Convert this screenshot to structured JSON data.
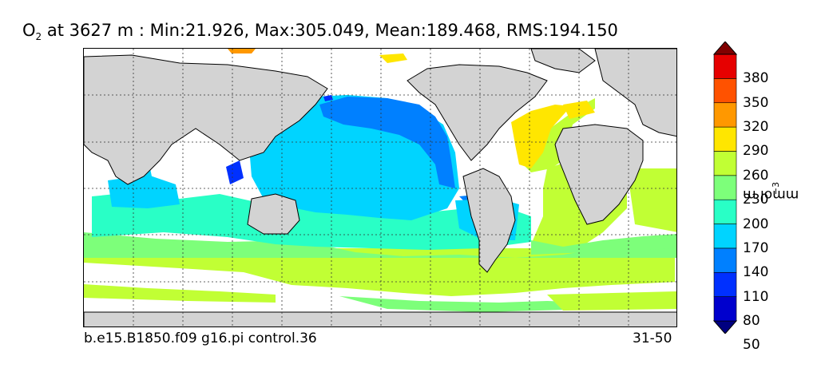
{
  "title": {
    "variable_base": "O",
    "variable_sub": "2",
    "rest": " at 3627 m : Min:21.926, Max:305.049, Mean:189.468, RMS:194.150"
  },
  "footer": {
    "case_name": "b.e15.B1850.f09 g16.pi control.36",
    "year_range": "31-50"
  },
  "colorbar": {
    "unit_base": "mmol m",
    "unit_sup": "−3",
    "ticks": [
      "380",
      "350",
      "320",
      "290",
      "260",
      "230",
      "200",
      "170",
      "140",
      "110",
      "80",
      "50"
    ],
    "levels": [
      {
        "color": "#000080"
      },
      {
        "color": "#0000cd"
      },
      {
        "color": "#0030ff"
      },
      {
        "color": "#0080ff"
      },
      {
        "color": "#00d4ff"
      },
      {
        "color": "#29ffc6"
      },
      {
        "color": "#7dff7a"
      },
      {
        "color": "#c1ff34"
      },
      {
        "color": "#ffe600"
      },
      {
        "color": "#ff9800"
      },
      {
        "color": "#ff5200"
      },
      {
        "color": "#e60000"
      },
      {
        "color": "#800000"
      }
    ]
  },
  "map": {
    "colors": {
      "land": "#d3d3d3",
      "missing": "#ffffff",
      "c80": "#0030ff",
      "c110": "#0080ff",
      "c140": "#00d4ff",
      "c170": "#29ffc6",
      "c200": "#7dff7a",
      "c230": "#c1ff34",
      "c260": "#ffe600",
      "c290": "#ff9800"
    },
    "gridlines": "dotted"
  }
}
